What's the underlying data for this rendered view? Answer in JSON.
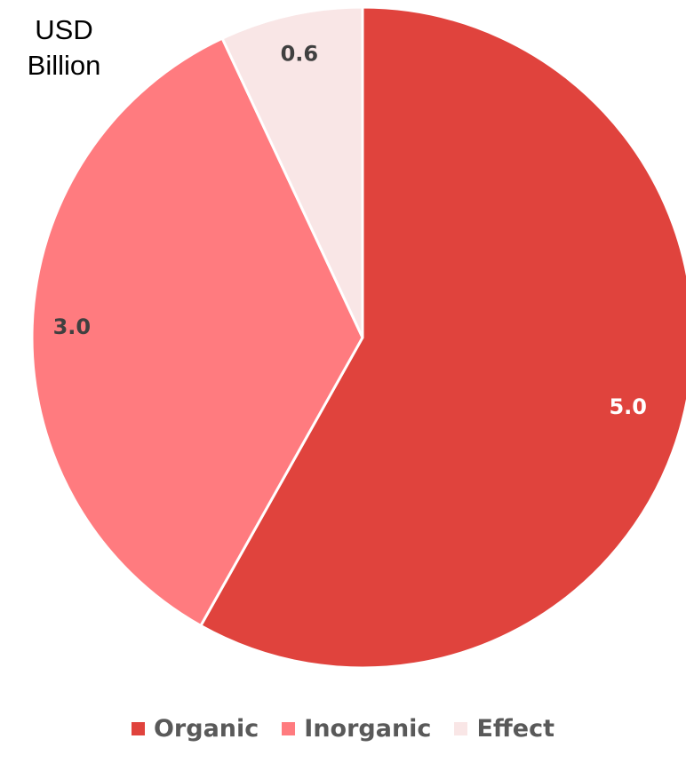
{
  "chart_data": {
    "type": "pie",
    "unit_label": [
      "USD",
      "Billion"
    ],
    "categories": [
      "Organic",
      "Inorganic",
      "Effect"
    ],
    "values": [
      5.0,
      3.0,
      0.6
    ],
    "value_labels": [
      "5.0",
      "3.0",
      "0.6"
    ],
    "colors": [
      "#E0433D",
      "#FF7B7F",
      "#F9E6E6"
    ],
    "label_colors": [
      "#FFFFFF",
      "#404040",
      "#404040"
    ],
    "start_angle_deg": 0,
    "direction": "clockwise",
    "legend_position": "bottom"
  }
}
